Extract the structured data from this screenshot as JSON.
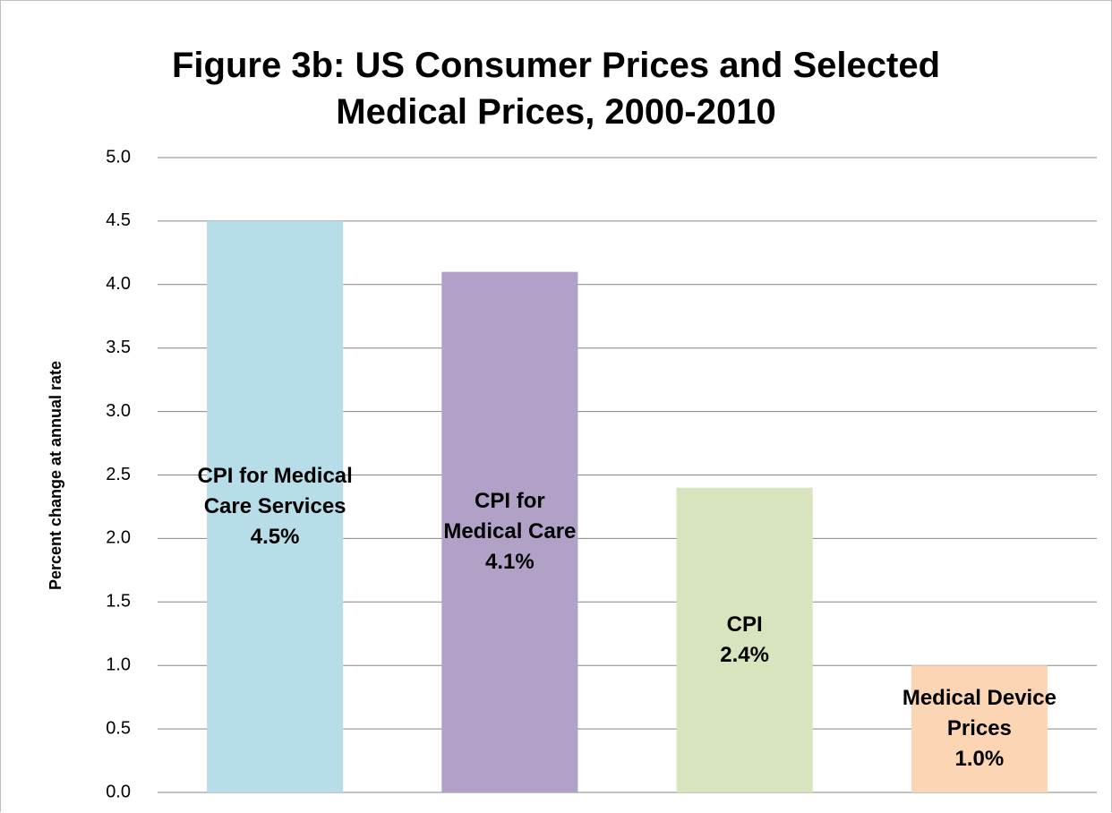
{
  "chart_data": {
    "type": "bar",
    "title": "Figure 3b: US Consumer Prices and Selected\nMedical Prices, 2000-2010",
    "y_label": "Percent change at annual rate",
    "categories": [
      "CPI for Medical\nCare Services",
      "CPI for\nMedical Care",
      "CPI",
      "Medical Device\nPrices"
    ],
    "values": [
      4.5,
      4.1,
      2.4,
      1.0
    ],
    "value_labels": [
      "4.5%",
      "4.1%",
      "2.4%",
      "1.0%"
    ],
    "colors": [
      "#b7dde8",
      "#b2a1c7",
      "#d7e4bd",
      "#fcd5b5"
    ],
    "ylim": [
      0,
      5
    ],
    "yticks": [
      {
        "value": 0,
        "label": "0.0"
      },
      0.5,
      {
        "value": 1,
        "label": "1.0"
      },
      1.5,
      {
        "value": 2,
        "label": "2.0"
      },
      2.5,
      {
        "value": 3,
        "label": "3.0"
      },
      3.5,
      {
        "value": 4,
        "label": "4.0"
      },
      4.5,
      {
        "value": 5,
        "label": "5.0"
      }
    ],
    "grid": true
  }
}
